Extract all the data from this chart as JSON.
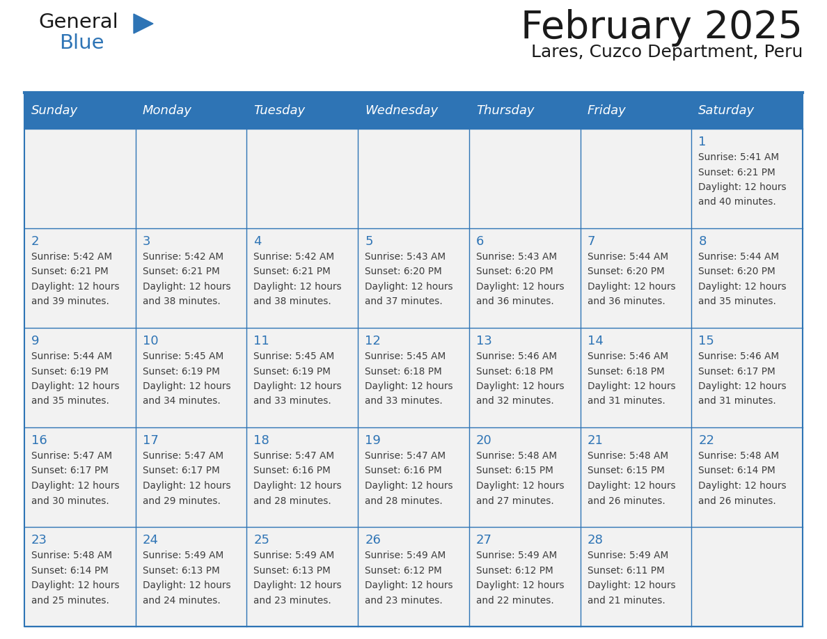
{
  "title": "February 2025",
  "subtitle": "Lares, Cuzco Department, Peru",
  "header_bg": "#2E74B5",
  "header_text_color": "#FFFFFF",
  "days_of_week": [
    "Sunday",
    "Monday",
    "Tuesday",
    "Wednesday",
    "Thursday",
    "Friday",
    "Saturday"
  ],
  "cell_bg": "#F2F2F2",
  "cell_border_color": "#2E74B5",
  "day_number_color": "#2E74B5",
  "info_text_color": "#3C3C3C",
  "title_color": "#1a1a1a",
  "subtitle_color": "#1a1a1a",
  "logo_general_color": "#1a1a1a",
  "logo_blue_color": "#2E74B5",
  "calendar_data": [
    [
      null,
      null,
      null,
      null,
      null,
      null,
      {
        "day": 1,
        "sunrise": "5:41 AM",
        "sunset": "6:21 PM",
        "daylight_line1": "Daylight: 12 hours",
        "daylight_line2": "and 40 minutes."
      }
    ],
    [
      {
        "day": 2,
        "sunrise": "5:42 AM",
        "sunset": "6:21 PM",
        "daylight_line1": "Daylight: 12 hours",
        "daylight_line2": "and 39 minutes."
      },
      {
        "day": 3,
        "sunrise": "5:42 AM",
        "sunset": "6:21 PM",
        "daylight_line1": "Daylight: 12 hours",
        "daylight_line2": "and 38 minutes."
      },
      {
        "day": 4,
        "sunrise": "5:42 AM",
        "sunset": "6:21 PM",
        "daylight_line1": "Daylight: 12 hours",
        "daylight_line2": "and 38 minutes."
      },
      {
        "day": 5,
        "sunrise": "5:43 AM",
        "sunset": "6:20 PM",
        "daylight_line1": "Daylight: 12 hours",
        "daylight_line2": "and 37 minutes."
      },
      {
        "day": 6,
        "sunrise": "5:43 AM",
        "sunset": "6:20 PM",
        "daylight_line1": "Daylight: 12 hours",
        "daylight_line2": "and 36 minutes."
      },
      {
        "day": 7,
        "sunrise": "5:44 AM",
        "sunset": "6:20 PM",
        "daylight_line1": "Daylight: 12 hours",
        "daylight_line2": "and 36 minutes."
      },
      {
        "day": 8,
        "sunrise": "5:44 AM",
        "sunset": "6:20 PM",
        "daylight_line1": "Daylight: 12 hours",
        "daylight_line2": "and 35 minutes."
      }
    ],
    [
      {
        "day": 9,
        "sunrise": "5:44 AM",
        "sunset": "6:19 PM",
        "daylight_line1": "Daylight: 12 hours",
        "daylight_line2": "and 35 minutes."
      },
      {
        "day": 10,
        "sunrise": "5:45 AM",
        "sunset": "6:19 PM",
        "daylight_line1": "Daylight: 12 hours",
        "daylight_line2": "and 34 minutes."
      },
      {
        "day": 11,
        "sunrise": "5:45 AM",
        "sunset": "6:19 PM",
        "daylight_line1": "Daylight: 12 hours",
        "daylight_line2": "and 33 minutes."
      },
      {
        "day": 12,
        "sunrise": "5:45 AM",
        "sunset": "6:18 PM",
        "daylight_line1": "Daylight: 12 hours",
        "daylight_line2": "and 33 minutes."
      },
      {
        "day": 13,
        "sunrise": "5:46 AM",
        "sunset": "6:18 PM",
        "daylight_line1": "Daylight: 12 hours",
        "daylight_line2": "and 32 minutes."
      },
      {
        "day": 14,
        "sunrise": "5:46 AM",
        "sunset": "6:18 PM",
        "daylight_line1": "Daylight: 12 hours",
        "daylight_line2": "and 31 minutes."
      },
      {
        "day": 15,
        "sunrise": "5:46 AM",
        "sunset": "6:17 PM",
        "daylight_line1": "Daylight: 12 hours",
        "daylight_line2": "and 31 minutes."
      }
    ],
    [
      {
        "day": 16,
        "sunrise": "5:47 AM",
        "sunset": "6:17 PM",
        "daylight_line1": "Daylight: 12 hours",
        "daylight_line2": "and 30 minutes."
      },
      {
        "day": 17,
        "sunrise": "5:47 AM",
        "sunset": "6:17 PM",
        "daylight_line1": "Daylight: 12 hours",
        "daylight_line2": "and 29 minutes."
      },
      {
        "day": 18,
        "sunrise": "5:47 AM",
        "sunset": "6:16 PM",
        "daylight_line1": "Daylight: 12 hours",
        "daylight_line2": "and 28 minutes."
      },
      {
        "day": 19,
        "sunrise": "5:47 AM",
        "sunset": "6:16 PM",
        "daylight_line1": "Daylight: 12 hours",
        "daylight_line2": "and 28 minutes."
      },
      {
        "day": 20,
        "sunrise": "5:48 AM",
        "sunset": "6:15 PM",
        "daylight_line1": "Daylight: 12 hours",
        "daylight_line2": "and 27 minutes."
      },
      {
        "day": 21,
        "sunrise": "5:48 AM",
        "sunset": "6:15 PM",
        "daylight_line1": "Daylight: 12 hours",
        "daylight_line2": "and 26 minutes."
      },
      {
        "day": 22,
        "sunrise": "5:48 AM",
        "sunset": "6:14 PM",
        "daylight_line1": "Daylight: 12 hours",
        "daylight_line2": "and 26 minutes."
      }
    ],
    [
      {
        "day": 23,
        "sunrise": "5:48 AM",
        "sunset": "6:14 PM",
        "daylight_line1": "Daylight: 12 hours",
        "daylight_line2": "and 25 minutes."
      },
      {
        "day": 24,
        "sunrise": "5:49 AM",
        "sunset": "6:13 PM",
        "daylight_line1": "Daylight: 12 hours",
        "daylight_line2": "and 24 minutes."
      },
      {
        "day": 25,
        "sunrise": "5:49 AM",
        "sunset": "6:13 PM",
        "daylight_line1": "Daylight: 12 hours",
        "daylight_line2": "and 23 minutes."
      },
      {
        "day": 26,
        "sunrise": "5:49 AM",
        "sunset": "6:12 PM",
        "daylight_line1": "Daylight: 12 hours",
        "daylight_line2": "and 23 minutes."
      },
      {
        "day": 27,
        "sunrise": "5:49 AM",
        "sunset": "6:12 PM",
        "daylight_line1": "Daylight: 12 hours",
        "daylight_line2": "and 22 minutes."
      },
      {
        "day": 28,
        "sunrise": "5:49 AM",
        "sunset": "6:11 PM",
        "daylight_line1": "Daylight: 12 hours",
        "daylight_line2": "and 21 minutes."
      },
      null
    ]
  ]
}
